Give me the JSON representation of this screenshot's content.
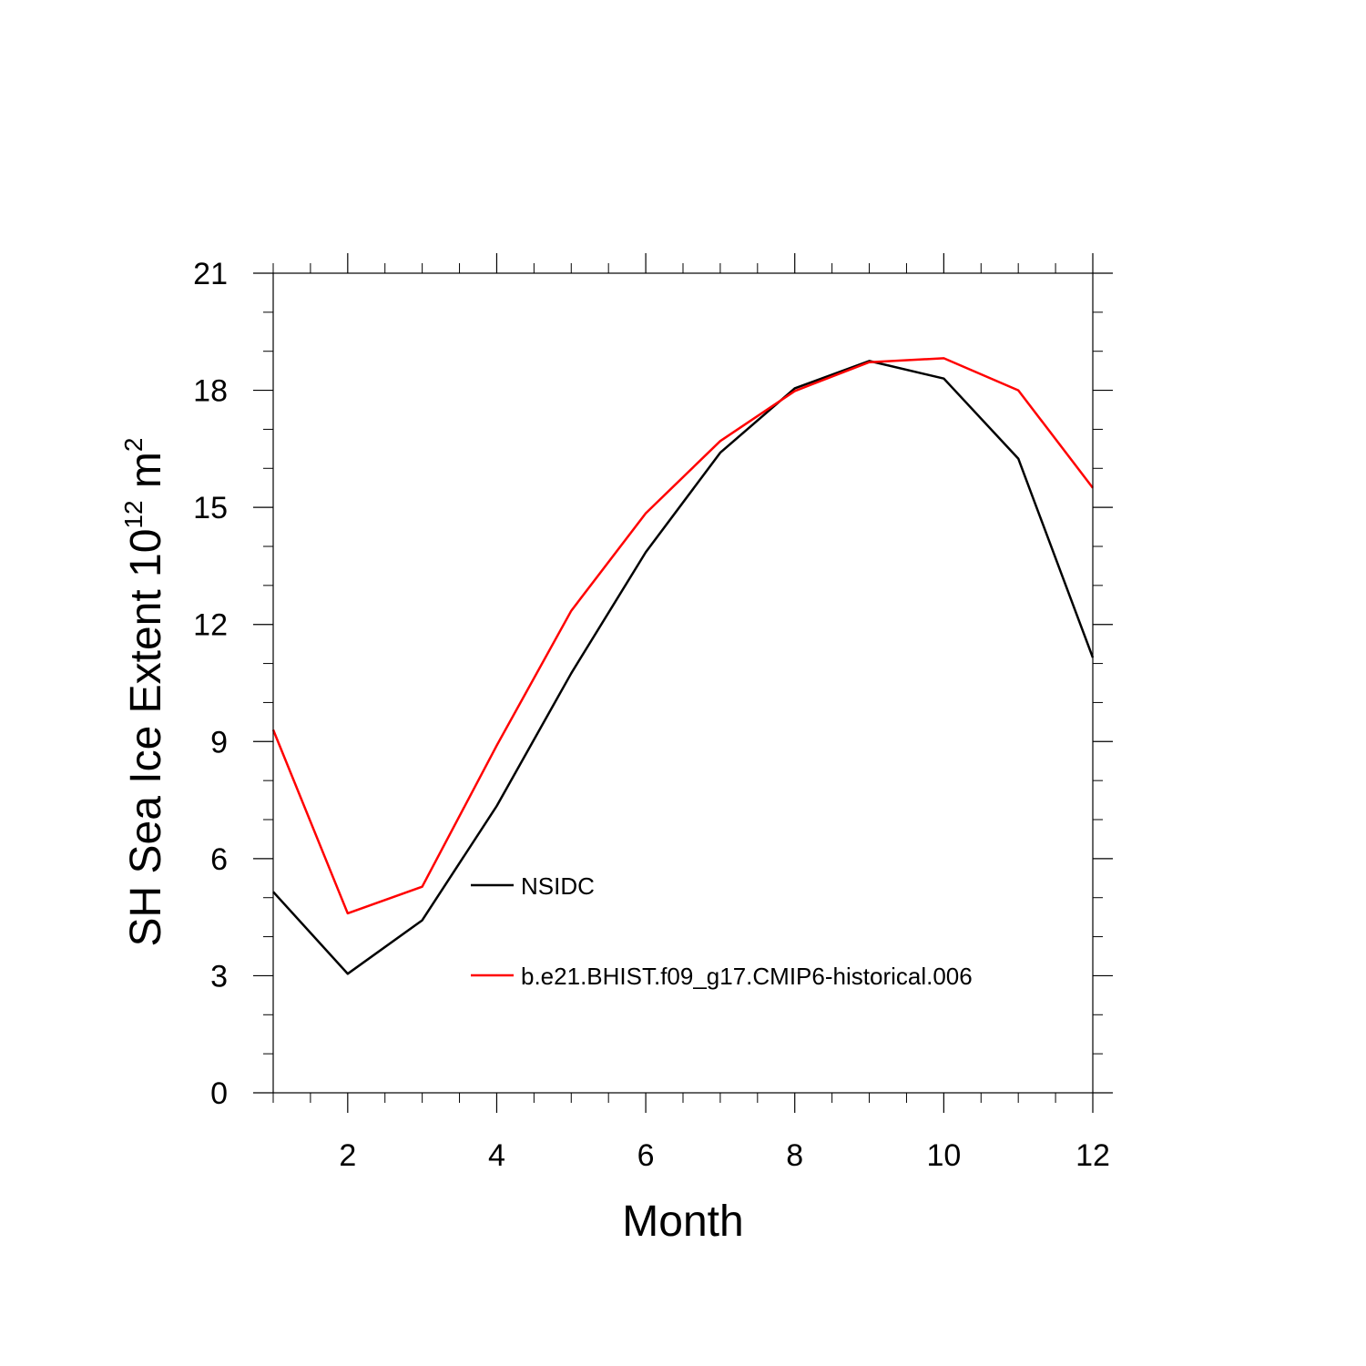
{
  "chart_data": {
    "type": "line",
    "xlabel": "Month",
    "ylabel": {
      "prefix": "SH Sea Ice Extent 10",
      "exponent1": "12",
      "unit": " m",
      "exponent2": "2"
    },
    "xlim": [
      1,
      12
    ],
    "ylim": [
      0,
      21
    ],
    "x_ticks": [
      2,
      4,
      6,
      8,
      10,
      12
    ],
    "y_ticks": [
      0,
      3,
      6,
      9,
      12,
      15,
      18,
      21
    ],
    "x": [
      1,
      2,
      3,
      4,
      5,
      6,
      7,
      8,
      9,
      10,
      11,
      12
    ],
    "series": [
      {
        "name": "NSIDC",
        "color": "#000000",
        "values": [
          5.15,
          3.05,
          4.42,
          7.35,
          10.75,
          13.85,
          16.4,
          18.05,
          18.75,
          18.3,
          16.25,
          11.15
        ]
      },
      {
        "name": "b.e21.BHIST.f09_g17.CMIP6-historical.006",
        "color": "#ff0000",
        "values": [
          9.3,
          4.6,
          5.28,
          8.9,
          12.35,
          14.85,
          16.7,
          17.98,
          18.72,
          18.82,
          18.0,
          15.5
        ]
      }
    ],
    "grid": false,
    "legend_position": "inside-lower-center"
  }
}
